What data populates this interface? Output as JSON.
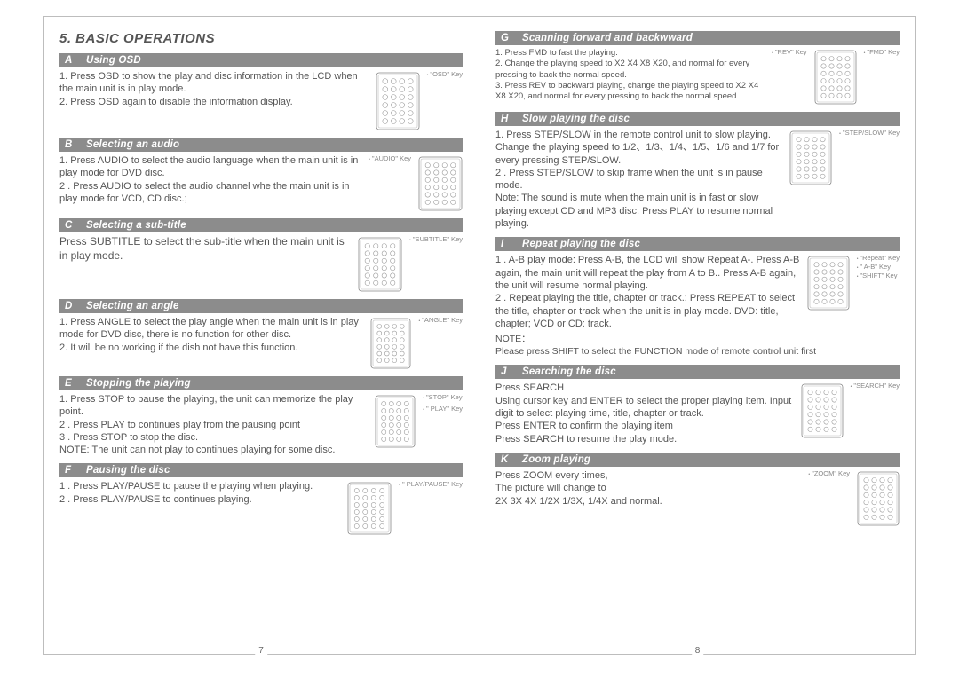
{
  "title": "5. BASIC OPERATIONS",
  "left_page_num": "7",
  "right_page_num": "8",
  "sections": {
    "A": {
      "letter": "A",
      "heading": "Using OSD",
      "lines": [
        "1. Press OSD to show the play and disc information in the LCD when the main unit is in play mode.",
        "2. Press OSD again to disable the information display."
      ],
      "key_labels": [
        "\"OSD\" Key"
      ]
    },
    "B": {
      "letter": "B",
      "heading": "Selecting an audio",
      "lines": [
        "1. Press AUDIO to select the audio language when the main unit is in play mode for DVD disc.",
        "2 . Press AUDIO to select the audio channel whe the main unit is in play mode for VCD, CD disc.;"
      ],
      "key_labels": [
        "\"AUDIO\" Key"
      ]
    },
    "C": {
      "letter": "C",
      "heading": "Selecting a sub-title",
      "lines": [
        "Press SUBTITLE to select the sub-title when the main unit is in play mode."
      ],
      "key_labels": [
        "\"SUBTITLE\" Key"
      ]
    },
    "D": {
      "letter": "D",
      "heading": "Selecting an angle",
      "lines": [
        "1. Press ANGLE to select the play angle when the main unit is in play mode for DVD disc, there is no function for other disc.",
        "2.  It will be no working if the dish not have this function."
      ],
      "key_labels": [
        "\"ANGLE\" Key"
      ]
    },
    "E": {
      "letter": "E",
      "heading": "Stopping the playing",
      "lines": [
        "1. Press STOP to pause the playing, the unit can memorize the play point.",
        "2 . Press PLAY to continues play from the pausing point",
        "3 . Press STOP to stop the disc.",
        "NOTE: The unit can not play to continues playing for some disc."
      ],
      "key_labels": [
        "\"STOP\" Key",
        "\" PLAY\" Key"
      ]
    },
    "F": {
      "letter": "F",
      "heading": "Pausing the disc",
      "lines": [
        "1 . Press PLAY/PAUSE to pause the playing when playing.",
        "2 . Press PLAY/PAUSE to continues playing."
      ],
      "key_labels": [
        "\" PLAY/PAUSE\" Key"
      ]
    },
    "G": {
      "letter": "G",
      "heading": "Scanning forward and backwward",
      "lines": [
        "1. Press FMD to fast the playing.",
        "2. Change the playing speed to  X2 X4 X8 X20, and normal for every pressing to back the normal speed.",
        "3. Press REV to backward playing, change the playing speed to X2 X4 X8 X20, and normal for every pressing to back the normal speed."
      ],
      "key_labels": [
        "\"REV\" Key",
        "\"FMD\" Key"
      ]
    },
    "H": {
      "letter": "H",
      "heading": "Slow playing the disc",
      "lines": [
        "1. Press STEP/SLOW in the remote control unit to slow playing. Change the playing speed to 1/2、1/3、1/4、1/5、1/6 and 1/7 for every pressing STEP/SLOW.",
        "2 . Press STEP/SLOW to skip frame when the unit is in pause mode.",
        "Note: The sound is mute when the main unit is in fast or slow playing except CD and MP3 disc. Press PLAY to resume normal playing."
      ],
      "key_labels": [
        "\"STEP/SLOW\" Key"
      ]
    },
    "I": {
      "letter": "I",
      "heading": "Repeat playing the disc",
      "lines": [
        "1 . A-B play mode: Press A-B, the LCD will show Repeat A-. Press A-B again, the main unit will repeat the play from A to B.. Press A-B again, the unit will resume normal playing.",
        "2 . Repeat playing the title, chapter or track.: Press REPEAT to select the title, chapter or track when the unit is in play mode. DVD: title, chapter; VCD or CD: track."
      ],
      "note": "NOTE：\nPlease press SHIFT to select the FUNCTION mode of remote control unit first",
      "key_labels": [
        "\"Repeat\" Key",
        "\" A-B\" Key",
        "\"SHIFT\" Key"
      ]
    },
    "J": {
      "letter": "J",
      "heading": "Searching the disc",
      "lines": [
        "Press SEARCH",
        "Using cursor key and ENTER to select the proper playing item. Input digit to select playing time, title, chapter or track.",
        "Press ENTER to confirm the playing item",
        "Press SEARCH to resume the play mode."
      ],
      "key_labels": [
        "\"SEARCH\" Key"
      ]
    },
    "K": {
      "letter": "K",
      "heading": "Zoom playing",
      "lines": [
        "Press ZOOM every times,",
        "The picture will change to",
        "2X 3X 4X 1/2X 1/3X, 1/4X and normal."
      ],
      "key_labels": [
        "\"ZOOM\" Key"
      ]
    }
  },
  "remote": {
    "width": 44,
    "height": 62,
    "border_color": "#999",
    "button_color": "#aaa",
    "bg": "#fff"
  }
}
